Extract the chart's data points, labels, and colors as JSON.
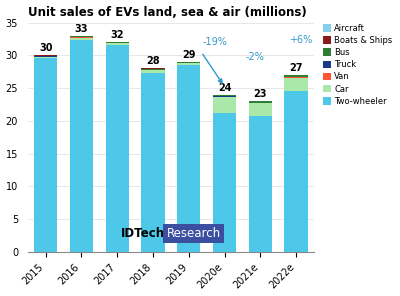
{
  "title": "Unit sales of EVs land, sea & air (millions)",
  "categories": [
    "2015",
    "2016",
    "2017",
    "2018",
    "2019",
    "2020e",
    "2021e",
    "2022e"
  ],
  "totals": [
    30,
    33,
    32,
    28,
    29,
    24,
    23,
    27
  ],
  "segments": {
    "Two-wheeler": [
      29.55,
      32.35,
      31.55,
      27.3,
      28.55,
      21.2,
      20.7,
      24.5
    ],
    "Car": [
      0.22,
      0.35,
      0.25,
      0.42,
      0.22,
      2.4,
      1.95,
      2.1
    ],
    "Van": [
      0.03,
      0.03,
      0.03,
      0.03,
      0.03,
      0.05,
      0.05,
      0.06
    ],
    "Truck": [
      0.04,
      0.04,
      0.04,
      0.04,
      0.04,
      0.06,
      0.06,
      0.06
    ],
    "Bus": [
      0.1,
      0.2,
      0.1,
      0.18,
      0.13,
      0.25,
      0.21,
      0.25
    ],
    "Boats & Ships": [
      0.03,
      0.03,
      0.03,
      0.03,
      0.03,
      0.04,
      0.03,
      0.03
    ],
    "Aircraft": [
      0.03,
      0.0,
      0.0,
      0.0,
      0.03,
      0.0,
      0.0,
      0.0
    ]
  },
  "colors": {
    "Two-wheeler": "#4DC8E8",
    "Car": "#AAE8AA",
    "Van": "#FF5533",
    "Truck": "#1A3A88",
    "Bus": "#2E7D32",
    "Boats & Ships": "#8B1A1A",
    "Aircraft": "#87CEEB"
  },
  "ylim": [
    0,
    35
  ],
  "yticks": [
    0,
    5,
    10,
    15,
    20,
    25,
    30,
    35
  ],
  "bg_color": "#FFFFFF",
  "annotation_color": "#3399CC",
  "label_color": "#000000",
  "idtechex_text": "IDTechEx",
  "research_text": "Research",
  "research_bg": "#3A4FA0",
  "research_fg": "#FFFFFF",
  "legend_labels": [
    "Aircraft",
    "Boats & Ships",
    "Bus",
    "Truck",
    "Van",
    "Car",
    "Two-wheeler"
  ]
}
